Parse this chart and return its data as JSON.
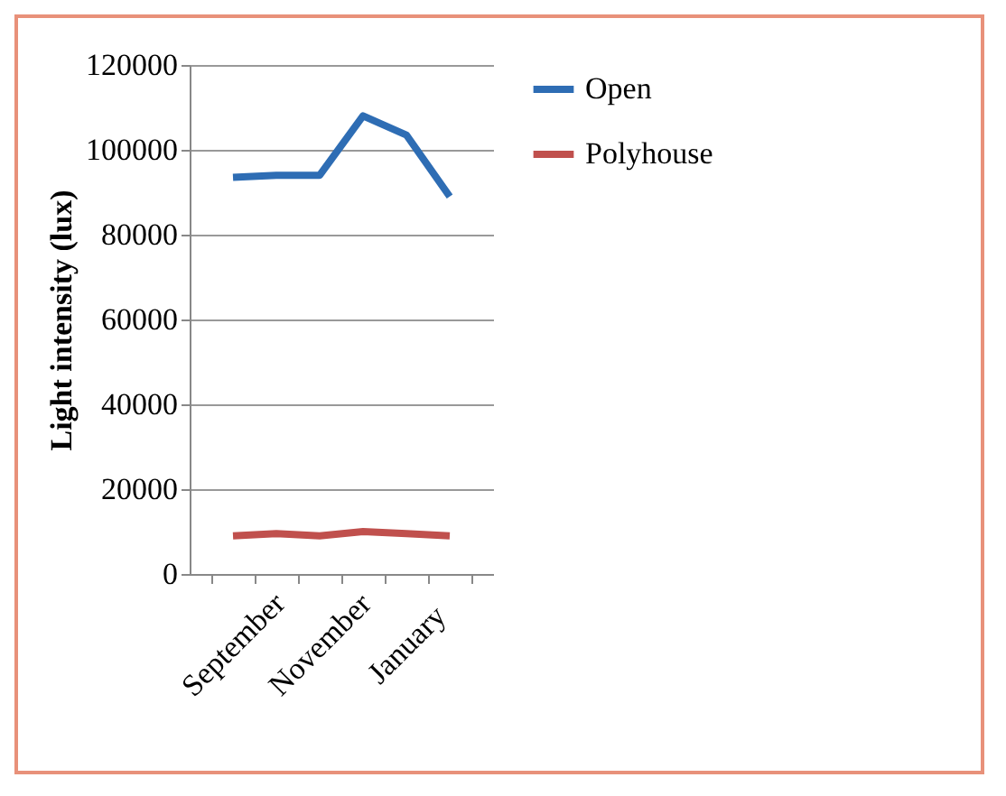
{
  "chart_data": {
    "type": "line",
    "ylabel": "Light intensity (lux)",
    "categories": [
      "September",
      null,
      "November",
      null,
      "January",
      null
    ],
    "series": [
      {
        "name": "Open",
        "color": "#2e6db4",
        "values": [
          93500,
          94000,
          94000,
          108000,
          103500,
          89000
        ]
      },
      {
        "name": "Polyhouse",
        "color": "#c0504d",
        "values": [
          9000,
          9500,
          9000,
          10000,
          9500,
          9000
        ]
      }
    ],
    "ylim": [
      0,
      120000
    ],
    "yticks": [
      0,
      20000,
      40000,
      60000,
      80000,
      100000,
      120000
    ],
    "grid": "y",
    "legend": "right",
    "marker": "none",
    "line_style": "solid"
  }
}
